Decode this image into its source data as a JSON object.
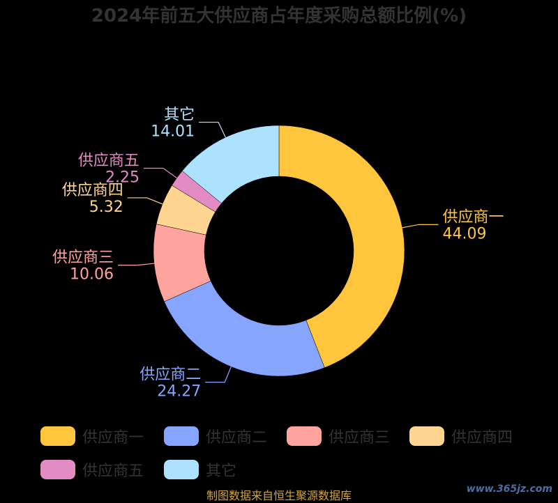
{
  "chart_data": {
    "type": "pie",
    "title": "2024年前五大供应商占年度采购总额比例(%)",
    "categories": [
      "供应商一",
      "供应商二",
      "供应商三",
      "供应商四",
      "供应商五",
      "其它"
    ],
    "values": [
      44.09,
      24.27,
      10.06,
      5.32,
      2.25,
      14.01
    ],
    "value_labels": [
      "44.09",
      "24.27",
      "10.06",
      "5.32",
      "2.25",
      "14.01"
    ],
    "colors": [
      "#ffc53d",
      "#85a5ff",
      "#ffa39e",
      "#ffd591",
      "#e38cc4",
      "#ade2ff"
    ],
    "donut": true,
    "legend_position": "bottom"
  },
  "source_note": "制图数据来自恒生聚源数据库",
  "watermark": "www.365jz.com"
}
